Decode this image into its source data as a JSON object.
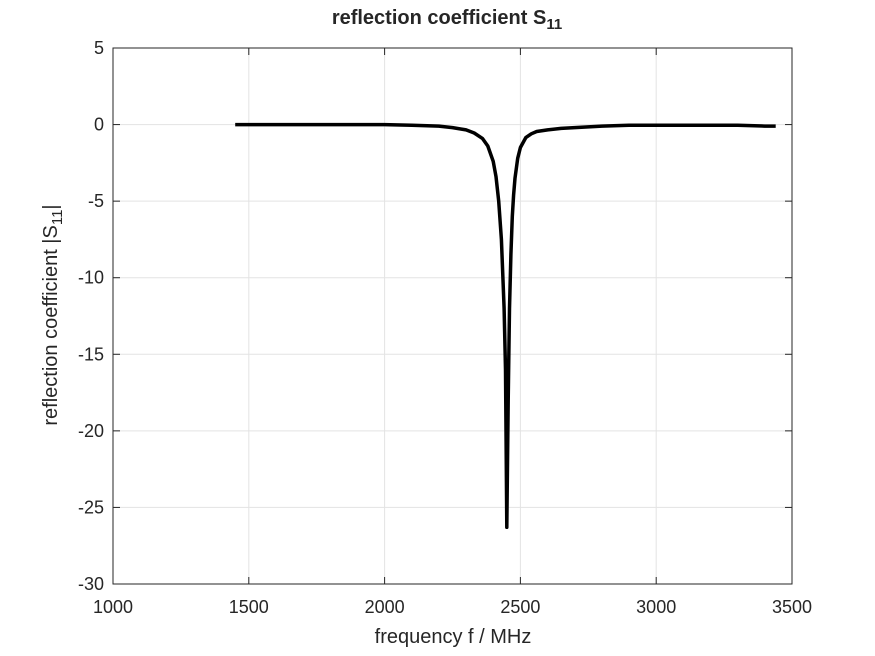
{
  "chart_data": {
    "type": "line",
    "title": "reflection coefficient S",
    "title_subscript": "11",
    "xlabel": "frequency f / MHz",
    "ylabel_prefix": "reflection coefficient |S",
    "ylabel_subscript": "11",
    "ylabel_suffix": "|",
    "xlim": [
      1000,
      3500
    ],
    "ylim": [
      -30,
      5
    ],
    "xticks": [
      1000,
      1500,
      2000,
      2500,
      3000,
      3500
    ],
    "yticks": [
      5,
      0,
      -5,
      -10,
      -15,
      -20,
      -25,
      -30
    ],
    "xtick_labels": [
      "1000",
      "1500",
      "2000",
      "2500",
      "3000",
      "3500"
    ],
    "ytick_labels": [
      "5",
      "0",
      "-5",
      "-10",
      "-15",
      "-20",
      "-25",
      "-30"
    ],
    "grid": true,
    "series": [
      {
        "color": "#000000",
        "x": [
          1450,
          1600,
          1800,
          2000,
          2100,
          2200,
          2250,
          2300,
          2330,
          2360,
          2380,
          2400,
          2410,
          2420,
          2430,
          2440,
          2445,
          2450,
          2455,
          2460,
          2465,
          2470,
          2475,
          2480,
          2490,
          2500,
          2520,
          2540,
          2560,
          2600,
          2650,
          2700,
          2800,
          2900,
          3000,
          3100,
          3200,
          3300,
          3400,
          3440
        ],
        "y": [
          0.0,
          0.0,
          0.0,
          0.0,
          -0.05,
          -0.1,
          -0.2,
          -0.35,
          -0.55,
          -0.9,
          -1.4,
          -2.4,
          -3.4,
          -5.0,
          -7.5,
          -12.0,
          -16.0,
          -26.3,
          -18.0,
          -12.0,
          -8.5,
          -6.0,
          -4.6,
          -3.5,
          -2.2,
          -1.5,
          -0.85,
          -0.6,
          -0.45,
          -0.35,
          -0.25,
          -0.2,
          -0.1,
          -0.05,
          -0.05,
          -0.05,
          -0.05,
          -0.05,
          -0.1,
          -0.1
        ]
      }
    ]
  }
}
